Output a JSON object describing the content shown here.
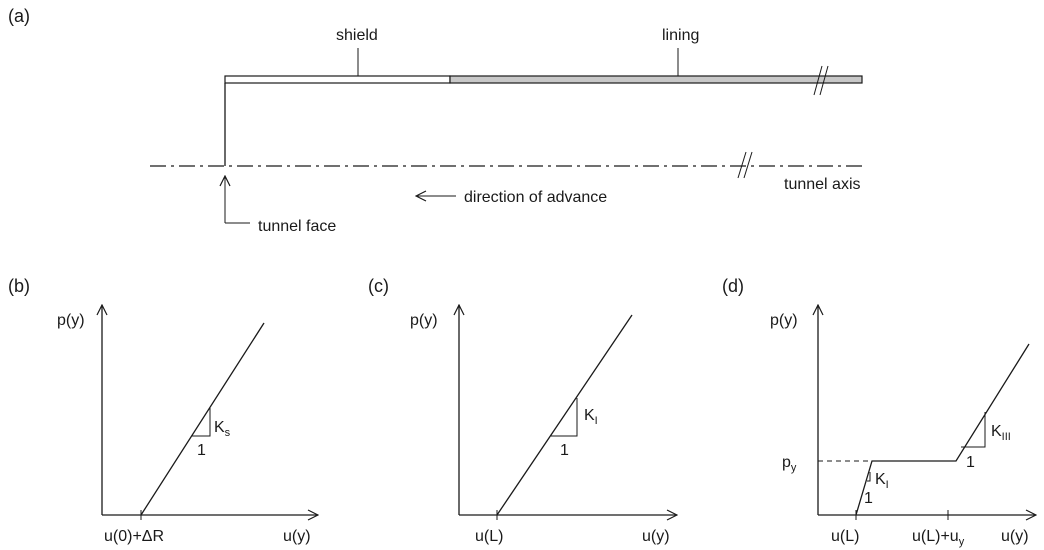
{
  "panels": {
    "a": "(a)",
    "b": "(b)",
    "c": "(c)",
    "d": "(d)"
  },
  "section_a": {
    "shield": "shield",
    "lining": "lining",
    "direction": "direction of advance",
    "tunnel_axis": "tunnel axis",
    "tunnel_face": "tunnel face"
  },
  "section_b": {
    "ylabel": "p(y)",
    "xlabel": "u(y)",
    "x_origin": "u(0)+ΔR",
    "slope_main": "K",
    "slope_sub": "s",
    "one": "1"
  },
  "section_c": {
    "ylabel": "p(y)",
    "xlabel": "u(y)",
    "x_origin": "u(L)",
    "slope_main": "K",
    "slope_sub": "I",
    "one": "1"
  },
  "section_d": {
    "ylabel": "p(y)",
    "xlabel": "u(y)",
    "x_origin": "u(L)",
    "x_second_main": "u(L)+u",
    "x_second_sub": "y",
    "py_main": "p",
    "py_sub": "y",
    "slope1_main": "K",
    "slope1_sub": "I",
    "slope2_main": "K",
    "slope2_sub": "III",
    "one": "1"
  },
  "colors": {
    "line": "#1a1a1a",
    "lining_fill": "#c8c8c8",
    "shield_fill": "#ffffff"
  }
}
